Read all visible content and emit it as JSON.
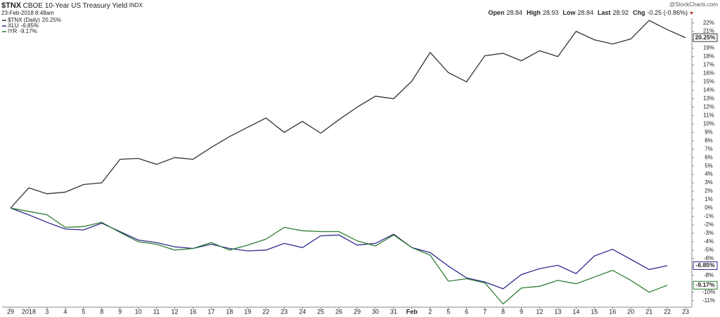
{
  "header": {
    "symbol": "$TNX",
    "title": "CBOE 10-Year US Treasury Yield",
    "exchange": "INDX",
    "date": "23-Feb-2018 8:48am",
    "brand": "@StockCharts.com",
    "quote": [
      {
        "label": "Open",
        "value": "28.84"
      },
      {
        "label": "High",
        "value": "28.93"
      },
      {
        "label": "Low",
        "value": "28.84"
      },
      {
        "label": "Last",
        "value": "28.92"
      },
      {
        "label": "Chg",
        "value": "-0.25 (-0.86%)"
      }
    ]
  },
  "chart_data": {
    "type": "line",
    "categories": [
      "29",
      "2018",
      "3",
      "4",
      "5",
      "8",
      "9",
      "10",
      "11",
      "12",
      "16",
      "17",
      "18",
      "19",
      "22",
      "23",
      "24",
      "25",
      "26",
      "29",
      "30",
      "31",
      "Feb",
      "2",
      "5",
      "6",
      "7",
      "8",
      "9",
      "12",
      "13",
      "14",
      "15",
      "16",
      "20",
      "21",
      "22",
      "23"
    ],
    "series": [
      {
        "name": "$TNX (Daily)",
        "last_label": "20.25%",
        "color": "#333333",
        "values": [
          0,
          2.4,
          1.7,
          1.9,
          2.8,
          3.0,
          5.8,
          5.9,
          5.2,
          6.0,
          5.8,
          7.2,
          8.5,
          9.6,
          10.7,
          9.0,
          10.3,
          8.9,
          10.5,
          12.0,
          13.3,
          13.0,
          15.1,
          18.5,
          16.1,
          15.0,
          18.1,
          18.4,
          17.5,
          18.7,
          18.0,
          21.0,
          20.0,
          19.5,
          20.1,
          22.3,
          21.2,
          20.25
        ]
      },
      {
        "name": "XLU",
        "last_label": "-6.85%",
        "color": "#2b2b8c",
        "values": [
          0,
          -0.8,
          -1.7,
          -2.5,
          -2.6,
          -1.8,
          -2.8,
          -3.8,
          -4.1,
          -4.6,
          -4.8,
          -4.3,
          -4.8,
          -5.1,
          -5.0,
          -4.2,
          -4.7,
          -3.3,
          -3.2,
          -4.4,
          -4.2,
          -3.1,
          -4.7,
          -5.3,
          -6.9,
          -8.3,
          -8.8,
          -9.6,
          -7.9,
          -7.2,
          -6.8,
          -7.8,
          -5.7,
          -4.9,
          -6.1,
          -7.3,
          -6.85,
          null
        ]
      },
      {
        "name": "IYR",
        "last_label": "-9.17%",
        "color": "#2e7d32",
        "values": [
          0,
          -0.4,
          -0.8,
          -2.3,
          -2.2,
          -1.7,
          -2.9,
          -4.0,
          -4.3,
          -5.0,
          -4.8,
          -4.1,
          -5.0,
          -4.4,
          -3.7,
          -2.3,
          -2.7,
          -2.8,
          -2.8,
          -3.9,
          -4.5,
          -3.2,
          -4.7,
          -5.6,
          -8.7,
          -8.4,
          -8.9,
          -11.4,
          -9.5,
          -9.3,
          -8.6,
          -9.0,
          -8.2,
          -7.4,
          -8.6,
          -10.0,
          -9.17,
          null
        ]
      }
    ],
    "ylim": [
      -11.5,
      22.5
    ],
    "yticks": [
      {
        "value": 22,
        "label": "22%"
      },
      {
        "value": 21,
        "label": "21%"
      },
      {
        "value": 20,
        "label": "20%"
      },
      {
        "value": 19,
        "label": "19%"
      },
      {
        "value": 18,
        "label": "18%"
      },
      {
        "value": 17,
        "label": "17%"
      },
      {
        "value": 16,
        "label": "16%"
      },
      {
        "value": 15,
        "label": "15%"
      },
      {
        "value": 14,
        "label": "14%"
      },
      {
        "value": 13,
        "label": "13%"
      },
      {
        "value": 12,
        "label": "12%"
      },
      {
        "value": 11,
        "label": "11%"
      },
      {
        "value": 10,
        "label": "10%"
      },
      {
        "value": 9,
        "label": "9%"
      },
      {
        "value": 8,
        "label": "8%"
      },
      {
        "value": 7,
        "label": "7%"
      },
      {
        "value": 6,
        "label": "6%"
      },
      {
        "value": 5,
        "label": "5%"
      },
      {
        "value": 4,
        "label": "4%"
      },
      {
        "value": 3,
        "label": "3%"
      },
      {
        "value": 2,
        "label": "2%"
      },
      {
        "value": 1,
        "label": "1%"
      },
      {
        "value": 0,
        "label": "0%"
      },
      {
        "value": -1,
        "label": "-1%"
      },
      {
        "value": -2,
        "label": "-2%"
      },
      {
        "value": -3,
        "label": "-3%"
      },
      {
        "value": -4,
        "label": "-4%"
      },
      {
        "value": -5,
        "label": "-5%"
      },
      {
        "value": -6,
        "label": "-6%"
      },
      {
        "value": -7,
        "label": "-7%"
      },
      {
        "value": -8,
        "label": "-8%"
      },
      {
        "value": -9,
        "label": "-9%"
      },
      {
        "value": -10,
        "label": "-10%"
      },
      {
        "value": -11,
        "label": "-11%"
      }
    ],
    "grid": false
  }
}
